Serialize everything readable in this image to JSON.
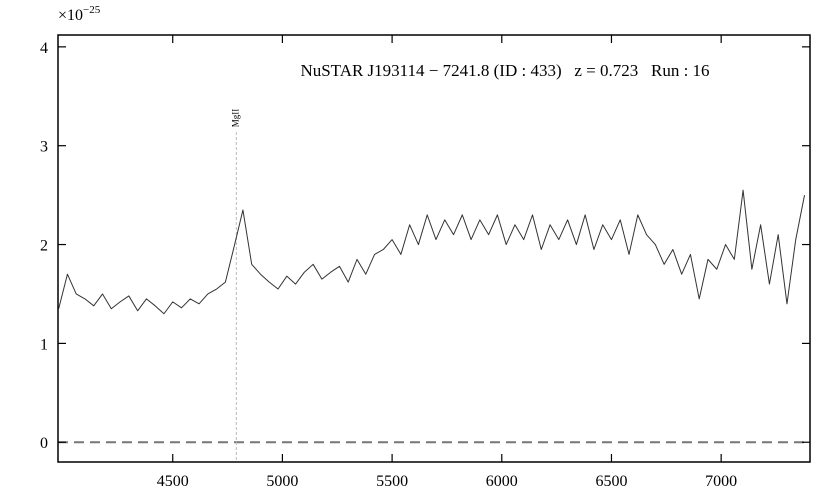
{
  "chart_data": {
    "type": "line",
    "title": "NuSTAR J193114 − 7241.8 (ID : 433)   z = 0.723   Run : 16",
    "offset_base": "×10",
    "offset_exponent": "−25",
    "x": [
      3980,
      4020,
      4060,
      4100,
      4140,
      4180,
      4220,
      4260,
      4300,
      4340,
      4380,
      4420,
      4460,
      4500,
      4540,
      4580,
      4620,
      4660,
      4700,
      4740,
      4780,
      4820,
      4860,
      4900,
      4940,
      4980,
      5020,
      5060,
      5100,
      5140,
      5180,
      5220,
      5260,
      5300,
      5340,
      5380,
      5420,
      5460,
      5500,
      5540,
      5580,
      5620,
      5660,
      5700,
      5740,
      5780,
      5820,
      5860,
      5900,
      5940,
      5980,
      6020,
      6060,
      6100,
      6140,
      6180,
      6220,
      6260,
      6300,
      6340,
      6380,
      6420,
      6460,
      6500,
      6540,
      6580,
      6620,
      6660,
      6700,
      6740,
      6780,
      6820,
      6860,
      6900,
      6940,
      6980,
      7020,
      7060,
      7100,
      7140,
      7180,
      7220,
      7260,
      7300,
      7340,
      7380
    ],
    "series": [
      {
        "color": "#333333",
        "values": [
          1.35,
          1.7,
          1.5,
          1.45,
          1.38,
          1.5,
          1.35,
          1.42,
          1.48,
          1.33,
          1.45,
          1.38,
          1.3,
          1.42,
          1.36,
          1.45,
          1.4,
          1.5,
          1.55,
          1.62,
          1.98,
          2.35,
          1.8,
          1.7,
          1.62,
          1.55,
          1.68,
          1.6,
          1.72,
          1.8,
          1.65,
          1.72,
          1.78,
          1.62,
          1.85,
          1.7,
          1.9,
          1.95,
          2.05,
          1.9,
          2.2,
          2.0,
          2.3,
          2.05,
          2.25,
          2.1,
          2.3,
          2.05,
          2.25,
          2.1,
          2.3,
          2.0,
          2.2,
          2.05,
          2.3,
          1.95,
          2.2,
          2.05,
          2.25,
          2.0,
          2.3,
          1.95,
          2.2,
          2.05,
          2.25,
          1.9,
          2.3,
          2.1,
          2.0,
          1.8,
          1.95,
          1.7,
          1.9,
          1.45,
          1.85,
          1.75,
          2.0,
          1.85,
          2.55,
          1.75,
          2.2,
          1.6,
          2.1,
          1.4,
          2.05,
          2.5
        ]
      }
    ],
    "hlines": [
      {
        "value": 0,
        "color": "#777777",
        "dashed": true
      }
    ],
    "annotations": [
      {
        "text": "MgII",
        "x": 4790,
        "color": "#bbbbbb"
      }
    ],
    "xlim": [
      3977,
      7405
    ],
    "ylim": [
      -0.2,
      4.12
    ],
    "xticks": [
      4500,
      5000,
      5500,
      6000,
      6500,
      7000
    ],
    "yticks": [
      0,
      1,
      2,
      3,
      4
    ]
  }
}
